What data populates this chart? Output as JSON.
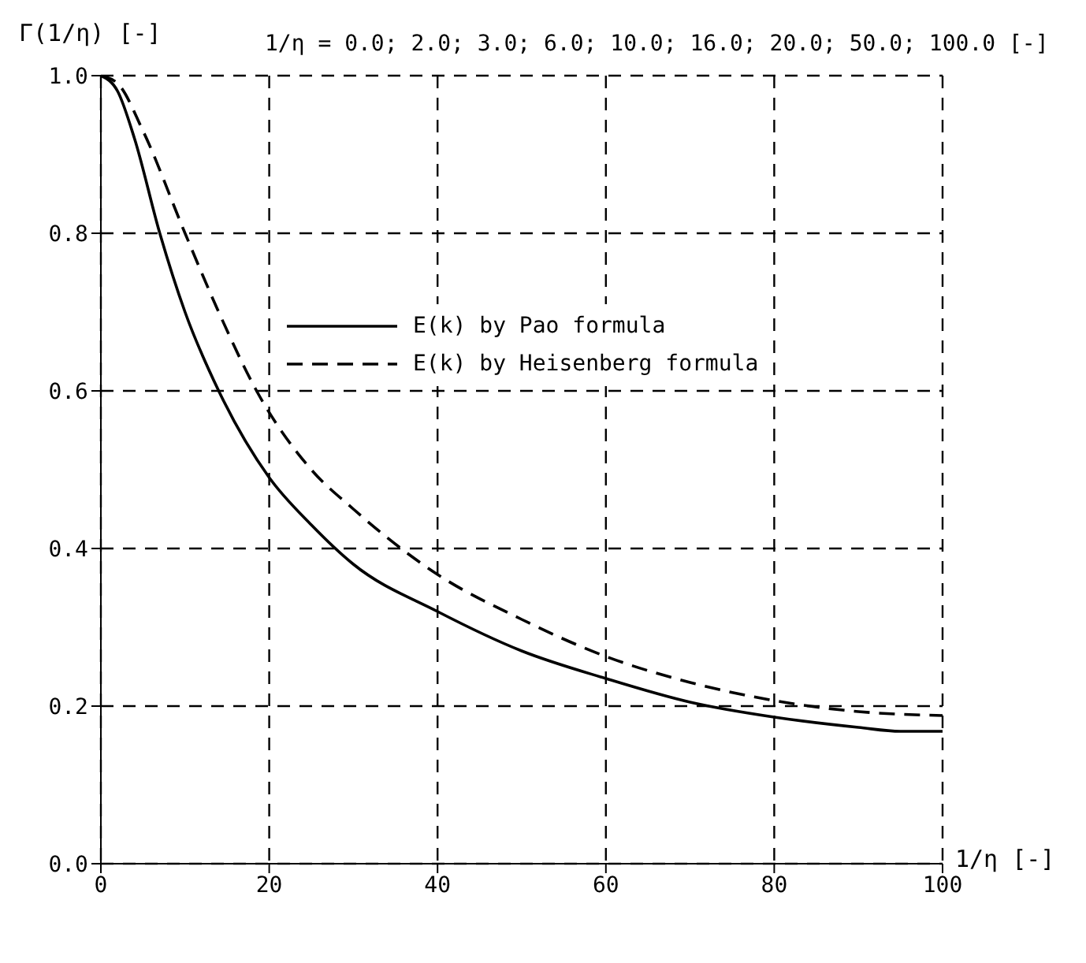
{
  "chart_data": {
    "type": "line",
    "ylabel": "Γ(1/η) [-]",
    "xlabel": "1/η [-]",
    "annotations": [
      "1/η = 0.0; 2.0; 3.0; 6.0; 10.0; 16.0; 20.0; 50.0; 100.0 [-]"
    ],
    "series": [
      {
        "name": "E(k) by Pao formula",
        "color": "#000000",
        "line_style": "solid",
        "x": [
          0,
          2,
          4,
          7,
          10,
          14,
          20,
          25,
          30,
          40,
          50,
          60,
          70,
          80,
          90,
          95,
          100
        ],
        "values": [
          1.0,
          0.98,
          0.92,
          0.8,
          0.7,
          0.6,
          0.49,
          0.43,
          0.38,
          0.32,
          0.27,
          0.235,
          0.205,
          0.186,
          0.173,
          0.168,
          0.168
        ]
      },
      {
        "name": "E(k) by Heisenberg formula",
        "color": "#000000",
        "line_style": "dashed",
        "x": [
          0,
          2,
          5,
          10,
          14,
          18.5,
          25,
          30,
          40,
          50,
          60,
          70,
          80,
          90,
          100
        ],
        "values": [
          1.0,
          0.99,
          0.93,
          0.8,
          0.7,
          0.6,
          0.5,
          0.45,
          0.367,
          0.31,
          0.263,
          0.23,
          0.207,
          0.193,
          0.188
        ]
      }
    ],
    "xlim": [
      0,
      100
    ],
    "xticks": [
      0,
      20,
      40,
      60,
      80,
      100
    ],
    "ylim": [
      0,
      1.0
    ],
    "yticks": [
      {
        "value": 0,
        "label": "0.0"
      },
      {
        "value": 0.2,
        "label": "0.2"
      },
      {
        "value": 0.4,
        "label": "0.4"
      },
      {
        "value": 0.6,
        "label": "0.6"
      },
      {
        "value": 0.8,
        "label": "0.8"
      },
      {
        "value": 1.0,
        "label": "1.0"
      }
    ],
    "grid": true,
    "legend": "top left",
    "marker": "none"
  }
}
